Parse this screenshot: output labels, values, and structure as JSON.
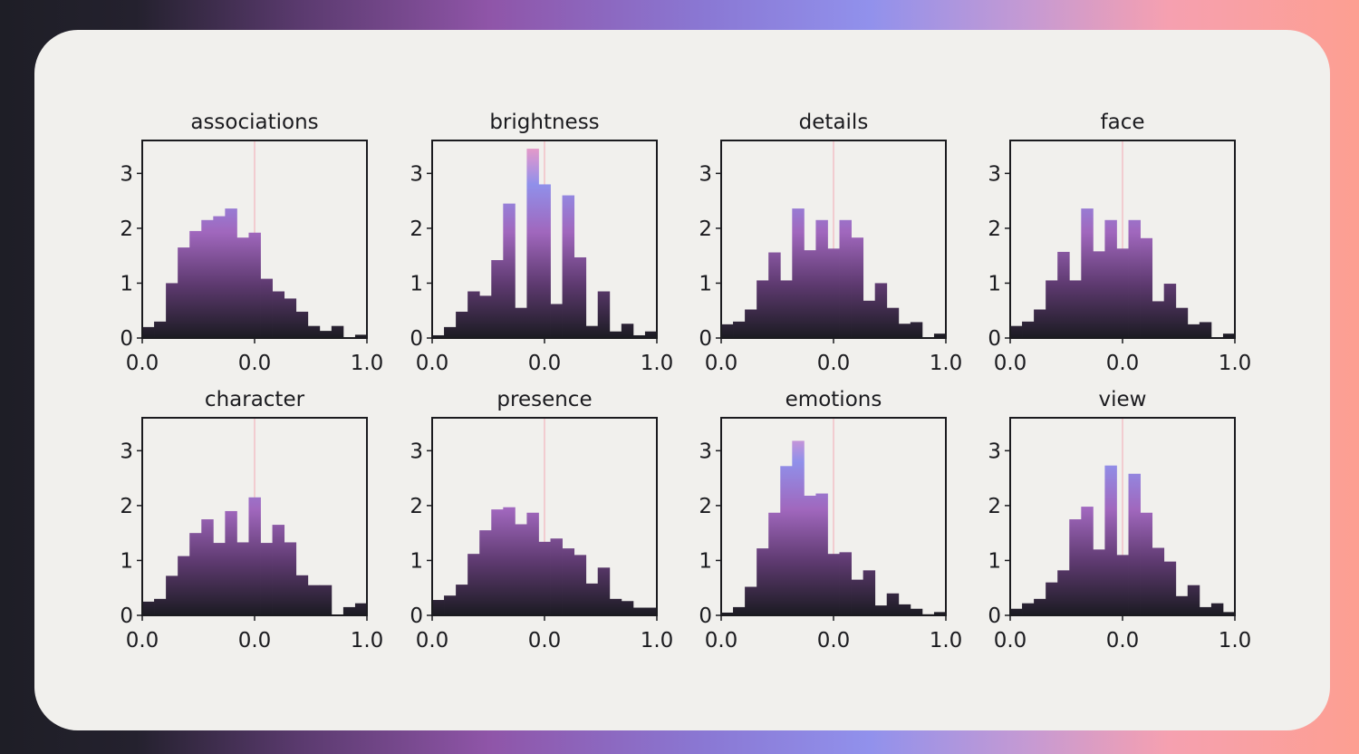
{
  "chart_data": [
    {
      "type": "bar",
      "title": "associations",
      "x_tick_labels": [
        "0.0",
        "0.0",
        "1.0"
      ],
      "yticks": [
        0,
        1,
        2,
        3
      ],
      "ylim": [
        0,
        3.6
      ],
      "values": [
        0.2,
        0.3,
        1.0,
        1.65,
        1.95,
        2.15,
        2.22,
        2.36,
        1.83,
        1.92,
        1.08,
        0.85,
        0.72,
        0.48,
        0.22,
        0.13,
        0.22,
        0.0,
        0.06
      ]
    },
    {
      "type": "bar",
      "title": "brightness",
      "x_tick_labels": [
        "0.0",
        "0.0",
        "1.0"
      ],
      "yticks": [
        0,
        1,
        2,
        3
      ],
      "ylim": [
        0,
        3.6
      ],
      "values": [
        0.05,
        0.2,
        0.48,
        0.85,
        0.77,
        1.42,
        2.45,
        0.55,
        3.45,
        2.8,
        0.62,
        2.6,
        1.47,
        0.22,
        0.85,
        0.12,
        0.26,
        0.05,
        0.12
      ]
    },
    {
      "type": "bar",
      "title": "details",
      "x_tick_labels": [
        "0.0",
        "0.0",
        "1.0"
      ],
      "yticks": [
        0,
        1,
        2,
        3
      ],
      "ylim": [
        0,
        3.6
      ],
      "values": [
        0.25,
        0.3,
        0.52,
        1.05,
        1.56,
        1.05,
        2.36,
        1.6,
        2.15,
        1.63,
        2.15,
        1.83,
        0.68,
        1.0,
        0.55,
        0.26,
        0.29,
        0.0,
        0.08
      ]
    },
    {
      "type": "bar",
      "title": "face",
      "x_tick_labels": [
        "0.0",
        "0.0",
        "1.0"
      ],
      "yticks": [
        0,
        1,
        2,
        3
      ],
      "ylim": [
        0,
        3.6
      ],
      "values": [
        0.22,
        0.3,
        0.52,
        1.05,
        1.57,
        1.05,
        2.36,
        1.58,
        2.15,
        1.63,
        2.15,
        1.82,
        0.67,
        0.99,
        0.55,
        0.25,
        0.29,
        0.0,
        0.08
      ]
    },
    {
      "type": "bar",
      "title": "character",
      "x_tick_labels": [
        "0.0",
        "0.0",
        "1.0"
      ],
      "yticks": [
        0,
        1,
        2,
        3
      ],
      "ylim": [
        0,
        3.6
      ],
      "values": [
        0.25,
        0.3,
        0.72,
        1.08,
        1.5,
        1.75,
        1.32,
        1.9,
        1.33,
        2.15,
        1.32,
        1.65,
        1.33,
        0.73,
        0.55,
        0.55,
        0.0,
        0.15,
        0.22
      ]
    },
    {
      "type": "bar",
      "title": "presence",
      "x_tick_labels": [
        "0.0",
        "0.0",
        "1.0"
      ],
      "yticks": [
        0,
        1,
        2,
        3
      ],
      "ylim": [
        0,
        3.6
      ],
      "values": [
        0.28,
        0.36,
        0.56,
        1.12,
        1.55,
        1.93,
        1.97,
        1.66,
        1.87,
        1.34,
        1.4,
        1.22,
        1.1,
        0.58,
        0.87,
        0.3,
        0.26,
        0.14,
        0.14
      ]
    },
    {
      "type": "bar",
      "title": "emotions",
      "x_tick_labels": [
        "0.0",
        "0.0",
        "1.0"
      ],
      "yticks": [
        0,
        1,
        2,
        3
      ],
      "ylim": [
        0,
        3.6
      ],
      "values": [
        0.05,
        0.15,
        0.52,
        1.22,
        1.87,
        2.72,
        3.18,
        2.18,
        2.22,
        1.12,
        1.15,
        0.65,
        0.82,
        0.18,
        0.4,
        0.2,
        0.12,
        0.02,
        0.06
      ]
    },
    {
      "type": "bar",
      "title": "view",
      "x_tick_labels": [
        "0.0",
        "0.0",
        "1.0"
      ],
      "yticks": [
        0,
        1,
        2,
        3
      ],
      "ylim": [
        0,
        3.6
      ],
      "values": [
        0.12,
        0.22,
        0.3,
        0.6,
        0.82,
        1.75,
        1.98,
        1.2,
        2.73,
        1.1,
        2.58,
        1.87,
        1.23,
        0.98,
        0.35,
        0.55,
        0.15,
        0.22,
        0.06
      ]
    }
  ]
}
